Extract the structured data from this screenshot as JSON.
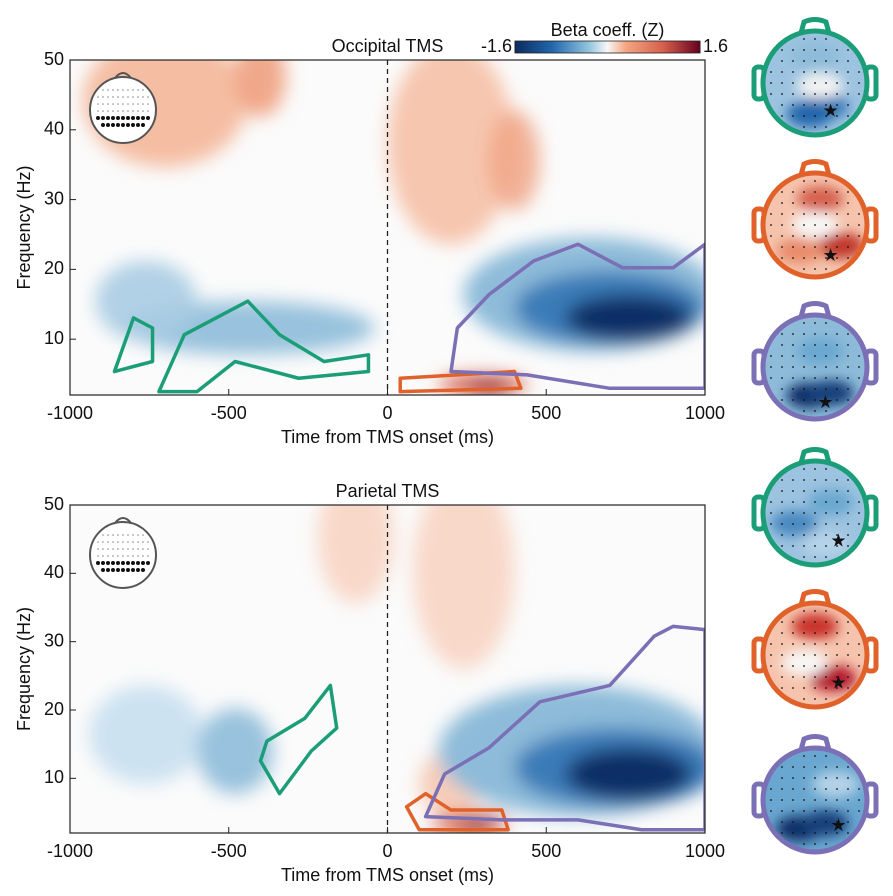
{
  "chart_data": [
    {
      "type": "heatmap",
      "title": "Occipital TMS",
      "xlabel": "Time from TMS onset (ms)",
      "ylabel": "Frequency (Hz)",
      "xlim": [
        -1000,
        1000
      ],
      "xticks": [
        -1000,
        -500,
        0,
        500,
        1000
      ],
      "ylim": [
        2,
        50
      ],
      "yticks": [
        10,
        20,
        30,
        40,
        50
      ],
      "colorbar": {
        "label": "Beta coeff. (Z)",
        "lim": [
          -1.6,
          1.6
        ],
        "ticks": [
          -1.6,
          1.6
        ]
      }
    },
    {
      "type": "heatmap",
      "title": "Parietal TMS",
      "xlabel": "Time from TMS onset (ms)",
      "ylabel": "Frequency (Hz)",
      "xlim": [
        -1000,
        1000
      ],
      "xticks": [
        -1000,
        -500,
        0,
        500,
        1000
      ],
      "ylim": [
        2,
        50
      ],
      "yticks": [
        10,
        20,
        30,
        40,
        50
      ]
    }
  ]
}
